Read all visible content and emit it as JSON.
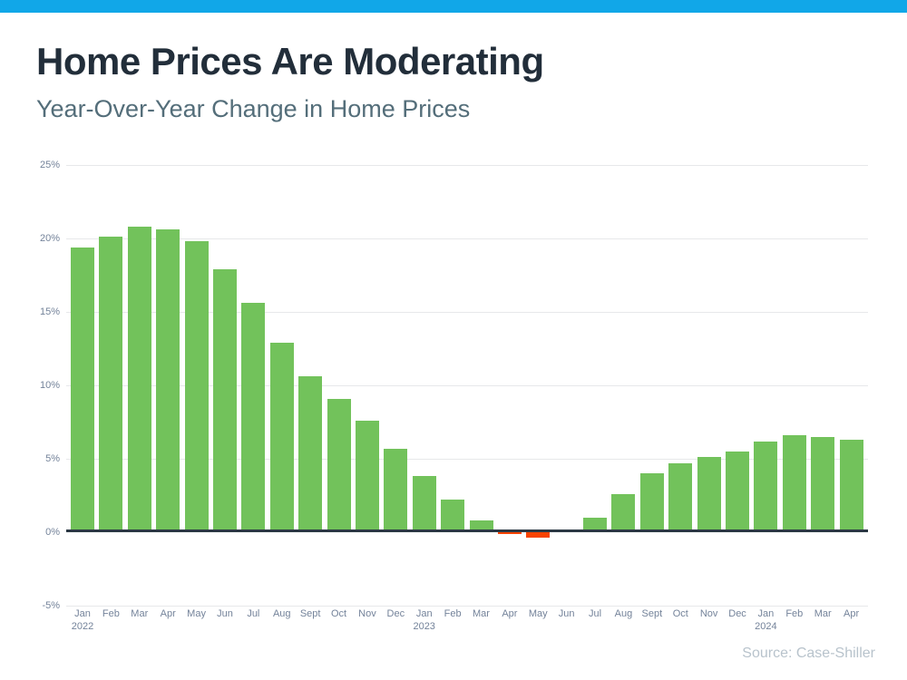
{
  "header": {
    "title": "Home Prices Are Moderating",
    "subtitle": "Year-Over-Year Change in Home Prices"
  },
  "footer": {
    "source": "Source: Case-Shiller"
  },
  "theme": {
    "accent_bar_color": "#11a7e8",
    "title_color": "#222e3a",
    "subtitle_color": "#546e7a",
    "axis_label_color": "#74839a",
    "gridline_color": "#e7e8ea",
    "baseline_color": "#2b3844",
    "source_color": "#b8c3cc",
    "positive_bar_color": "#72c25b",
    "negative_bar_color": "#f84300"
  },
  "chart_data": {
    "type": "bar",
    "title": "Home Prices Are Moderating",
    "subtitle": "Year-Over-Year Change in Home Prices",
    "xlabel": "",
    "ylabel": "",
    "unit": "%",
    "categories": [
      "Jan",
      "Feb",
      "Mar",
      "Apr",
      "May",
      "Jun",
      "Jul",
      "Aug",
      "Sept",
      "Oct",
      "Nov",
      "Dec",
      "Jan",
      "Feb",
      "Mar",
      "Apr",
      "May",
      "Jun",
      "Jul",
      "Aug",
      "Sept",
      "Oct",
      "Nov",
      "Dec",
      "Jan",
      "Feb",
      "Mar",
      "Apr"
    ],
    "year_markers": [
      {
        "index": 0,
        "label": "2022"
      },
      {
        "index": 12,
        "label": "2023"
      },
      {
        "index": 24,
        "label": "2024"
      }
    ],
    "values": [
      19.4,
      20.1,
      20.8,
      20.6,
      19.8,
      17.9,
      15.6,
      12.9,
      10.6,
      9.1,
      7.6,
      5.7,
      3.8,
      2.2,
      0.8,
      -0.1,
      -0.4,
      0.0,
      1.0,
      2.6,
      4.0,
      4.7,
      5.1,
      5.5,
      6.2,
      6.6,
      6.5,
      6.3
    ],
    "yticks": [
      25,
      20,
      15,
      10,
      5,
      0,
      -5
    ],
    "ytick_labels": [
      "25%",
      "20%",
      "15%",
      "10%",
      "5%",
      "0%",
      "-5%"
    ],
    "ylim": [
      -5,
      25
    ],
    "grid": true,
    "legend": false,
    "source": "Source: Case-Shiller"
  }
}
